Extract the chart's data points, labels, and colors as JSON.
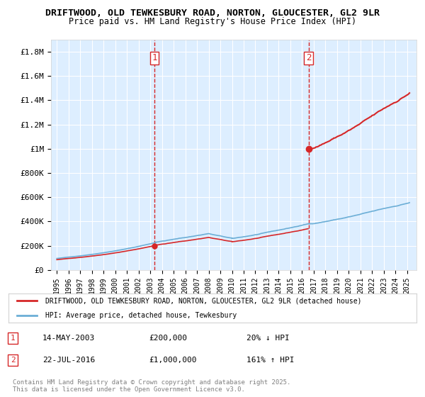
{
  "title1": "DRIFTWOOD, OLD TEWKESBURY ROAD, NORTON, GLOUCESTER, GL2 9LR",
  "title2": "Price paid vs. HM Land Registry's House Price Index (HPI)",
  "legend_line1": "DRIFTWOOD, OLD TEWKESBURY ROAD, NORTON, GLOUCESTER, GL2 9LR (detached house)",
  "legend_line2": "HPI: Average price, detached house, Tewkesbury",
  "annotation1_label": "1",
  "annotation1_date": "14-MAY-2003",
  "annotation1_price": "£200,000",
  "annotation1_hpi": "20% ↓ HPI",
  "annotation2_label": "2",
  "annotation2_date": "22-JUL-2016",
  "annotation2_price": "£1,000,000",
  "annotation2_hpi": "161% ↑ HPI",
  "footer": "Contains HM Land Registry data © Crown copyright and database right 2025.\nThis data is licensed under the Open Government Licence v3.0.",
  "sale1_year": 2003.37,
  "sale1_value": 200000,
  "sale2_year": 2016.55,
  "sale2_value": 1000000,
  "hpi_color": "#6baed6",
  "price_color": "#d62728",
  "vline_color": "#d62728",
  "background_color": "#ddeeff",
  "ylim_max": 1900000,
  "yticks": [
    0,
    200000,
    400000,
    600000,
    800000,
    1000000,
    1200000,
    1400000,
    1600000,
    1800000
  ],
  "ylabel_format": [
    "£0",
    "£200K",
    "£400K",
    "£600K",
    "£800K",
    "£1M",
    "£1.2M",
    "£1.4M",
    "£1.6M",
    "£1.8M"
  ]
}
